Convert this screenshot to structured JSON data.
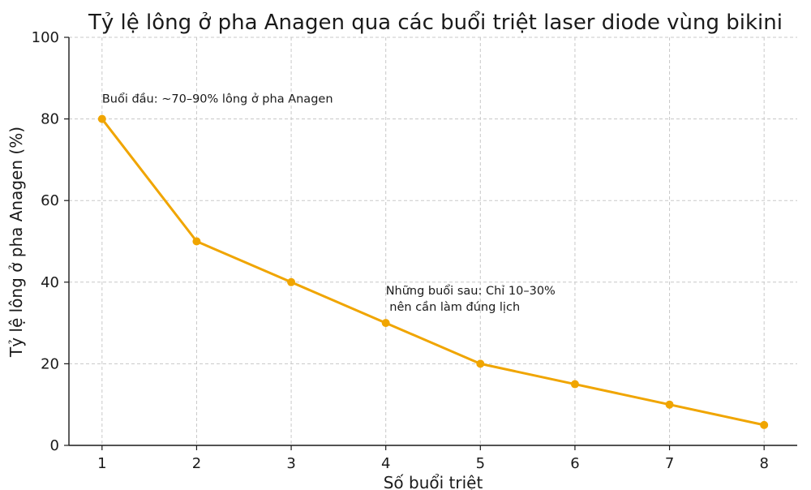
{
  "chart_data": {
    "type": "line",
    "title": "Tỷ lệ lông ở pha Anagen qua các buổi triệt laser diode vùng bikini",
    "xlabel": "Số buổi triệt",
    "ylabel": "Tỷ lệ lông ở pha Anagen (%)",
    "x": [
      1,
      2,
      3,
      4,
      5,
      6,
      7,
      8
    ],
    "series": [
      {
        "values": [
          80,
          50,
          40,
          30,
          20,
          15,
          10,
          5
        ],
        "color": "#f0a500"
      }
    ],
    "xlim": [
      0.65,
      8.35
    ],
    "ylim": [
      0,
      100
    ],
    "x_ticks": [
      "1",
      "2",
      "3",
      "4",
      "5",
      "6",
      "7",
      "8"
    ],
    "y_ticks": [
      "0",
      "20",
      "40",
      "60",
      "80",
      "100"
    ],
    "grid": true,
    "annotations": [
      {
        "text": [
          "Buổi đầu: ~70–90% lông ở pha Anagen"
        ],
        "x": 1,
        "y": 85
      },
      {
        "text": [
          "Những buổi sau: Chỉ 10–30%",
          " nên cần làm đúng lịch"
        ],
        "x": 4,
        "y": 38
      }
    ]
  }
}
